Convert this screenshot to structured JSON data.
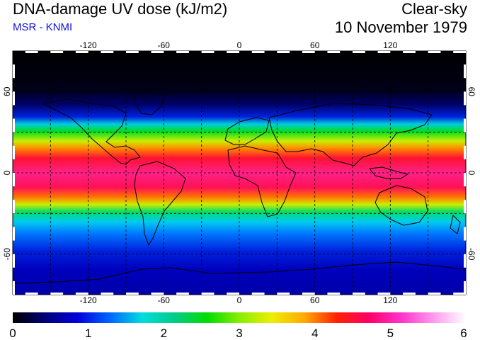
{
  "header": {
    "title": "DNA-damage UV dose (kJ/m2)",
    "source": "MSR - KNMI",
    "condition": "Clear-sky",
    "date": "10 November 1979"
  },
  "colors": {
    "source_text": "#1010e0"
  },
  "map": {
    "lon_range": [
      -180,
      180
    ],
    "lat_range": [
      -90,
      90
    ],
    "lon_ticks": [
      -120,
      -60,
      0,
      60,
      120
    ],
    "lat_ticks": [
      60,
      0,
      -60
    ],
    "lon_tick_labels": [
      "-120",
      "-60",
      "0",
      "60",
      "120"
    ],
    "lat_tick_labels": [
      "60",
      "0",
      "-60"
    ],
    "grid": "dashed every 30 degrees"
  },
  "colorbar": {
    "min": 0,
    "max": 6,
    "tick_labels": [
      "0",
      "1",
      "2",
      "3",
      "4",
      "5",
      "6"
    ],
    "stops": [
      "#000000",
      "#000077",
      "#0000dd",
      "#0066ff",
      "#00dddd",
      "#00cc88",
      "#00dd00",
      "#88ee00",
      "#eeee00",
      "#ffaa00",
      "#ff2200",
      "#ff0066",
      "#ff33cc",
      "#ff99ee",
      "#ffffff"
    ]
  }
}
